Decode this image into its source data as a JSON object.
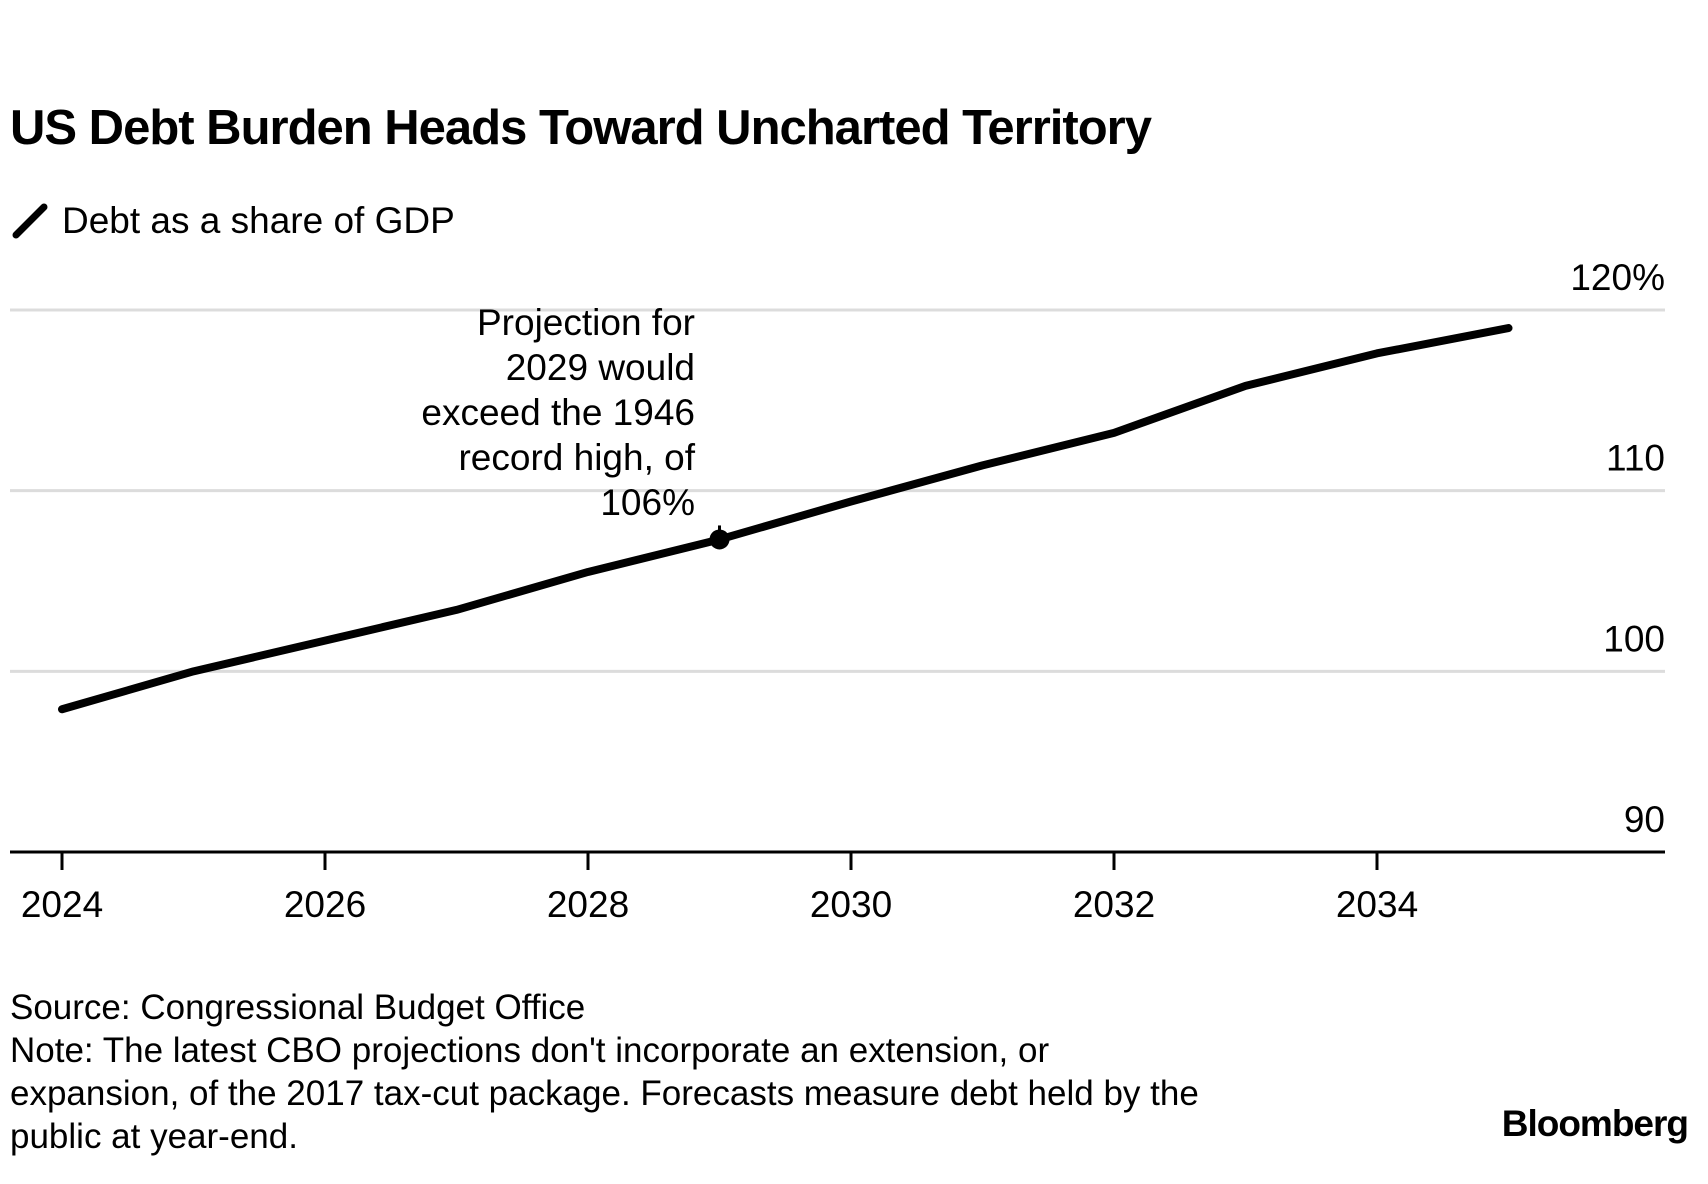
{
  "title": "US Debt Burden Heads Toward Uncharted Territory",
  "legend": {
    "label": "Debt as a share of GDP",
    "icon": "line-swatch-icon",
    "color": "#000000"
  },
  "annotation": {
    "lines": [
      "Projection for",
      "2029 would",
      "exceed the 1946",
      "record high, of",
      "106%"
    ],
    "x": 2029
  },
  "footer": {
    "source": "Source: Congressional Budget Office",
    "note_lines": [
      "Note: The latest CBO projections don't incorporate an extension, or",
      "expansion, of the 2017 tax-cut package. Forecasts measure debt held by the",
      "public at year-end."
    ]
  },
  "logo": "Bloomberg",
  "colors": {
    "line": "#000000",
    "grid": "#dcdcdc",
    "axis": "#000000"
  },
  "chart_data": {
    "type": "line",
    "title": "US Debt Burden Heads Toward Uncharted Territory",
    "xlabel": "",
    "ylabel": "",
    "x": [
      2024,
      2025,
      2026,
      2027,
      2028,
      2029,
      2030,
      2031,
      2032,
      2033,
      2034,
      2035
    ],
    "series": [
      {
        "name": "Debt as a share of GDP",
        "values": [
          97.9,
          100.0,
          101.7,
          103.4,
          105.5,
          107.3,
          109.4,
          111.4,
          113.2,
          115.8,
          117.6,
          119.0
        ]
      }
    ],
    "xlim": [
      2024,
      2036
    ],
    "ylim": [
      90,
      120
    ],
    "x_ticks": [
      2024,
      2026,
      2028,
      2030,
      2032,
      2034
    ],
    "x_tick_labels": [
      "2024",
      "2026",
      "2028",
      "2030",
      "2032",
      "2034"
    ],
    "y_ticks": [
      90,
      100,
      110,
      120
    ],
    "y_tick_labels": [
      "90",
      "100",
      "110",
      "120%"
    ],
    "highlight_point": {
      "x": 2029,
      "y": 107.3
    },
    "grid": true,
    "y_axis_position": "right",
    "legend_position": "top-left"
  }
}
